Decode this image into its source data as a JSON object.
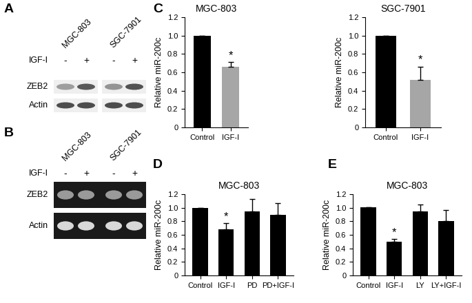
{
  "chart_data": [
    {
      "type": "bar",
      "panel": "C",
      "title": "MGC-803",
      "y_label": "Relative miR-200c",
      "categories": [
        "Control",
        "IGF-I"
      ],
      "values": [
        1.0,
        0.66
      ],
      "errors": [
        0,
        0.05
      ],
      "colors": [
        "#000000",
        "#a6a6a6"
      ],
      "ylim": [
        0,
        1.2
      ],
      "yticks": [
        0,
        0.2,
        0.4,
        0.6,
        0.8,
        {
          "value": 1,
          "label": "1.0"
        },
        1.2
      ],
      "annotations": [
        {
          "category": "IGF-I",
          "text": "*"
        }
      ]
    },
    {
      "type": "bar",
      "title": "SGC-7901",
      "y_label": "Relative miR-200c",
      "categories": [
        "Control",
        "IGF-I"
      ],
      "values": [
        1.0,
        0.52
      ],
      "errors": [
        0,
        0.14
      ],
      "colors": [
        "#000000",
        "#a6a6a6"
      ],
      "ylim": [
        0,
        1.2
      ],
      "yticks": [
        0,
        0.2,
        0.4,
        0.6,
        0.8,
        {
          "value": 1,
          "label": "1.0"
        },
        1.2
      ],
      "annotations": [
        {
          "category": "IGF-I",
          "text": "*"
        }
      ]
    },
    {
      "type": "bar",
      "panel": "D",
      "title": "MGC-803",
      "y_label": "Relative miR-200c",
      "categories": [
        "Control",
        "IGF-I",
        "PD",
        "PD+IGF-I"
      ],
      "values": [
        1.0,
        0.68,
        0.95,
        0.9
      ],
      "errors": [
        0,
        0.09,
        0.18,
        0.17
      ],
      "color": "#000000",
      "ylim": [
        0,
        1.2
      ],
      "yticks": [
        0,
        0.2,
        0.4,
        0.6,
        0.8,
        {
          "value": 1,
          "label": "1.0"
        },
        1.2
      ],
      "annotations": [
        {
          "category": "IGF-I",
          "text": "*"
        }
      ]
    },
    {
      "type": "bar",
      "panel": "E",
      "title": "MGC-803",
      "y_label": "Relative miR-200c",
      "categories": [
        "Control",
        "IGF-I",
        "LY",
        "LY+IGF-I"
      ],
      "values": [
        1.01,
        0.5,
        0.95,
        0.8
      ],
      "errors": [
        0,
        0.04,
        0.1,
        0.17
      ],
      "color": "#000000",
      "ylim": [
        0,
        1.2
      ],
      "yticks": [
        0,
        0.2,
        0.4,
        0.6,
        0.8,
        {
          "value": 1,
          "label": "1.0"
        },
        1.2
      ],
      "annotations": [
        {
          "category": "IGF-I",
          "text": "*"
        }
      ]
    }
  ],
  "blots": [
    {
      "panel": "A",
      "cell_lines": [
        "MGC-803",
        "SGC-7901"
      ],
      "treatment": "IGF-I",
      "lanes": [
        "-",
        "+",
        "-",
        "+"
      ],
      "bands": [
        "ZEB2",
        "Actin"
      ]
    },
    {
      "panel": "B",
      "cell_lines": [
        "MGC-803",
        "SGC-7901"
      ],
      "treatment": "IGF-I",
      "lanes": [
        "-",
        "+",
        "-",
        "+"
      ],
      "bands": [
        "ZEB2",
        "Actin"
      ]
    }
  ]
}
